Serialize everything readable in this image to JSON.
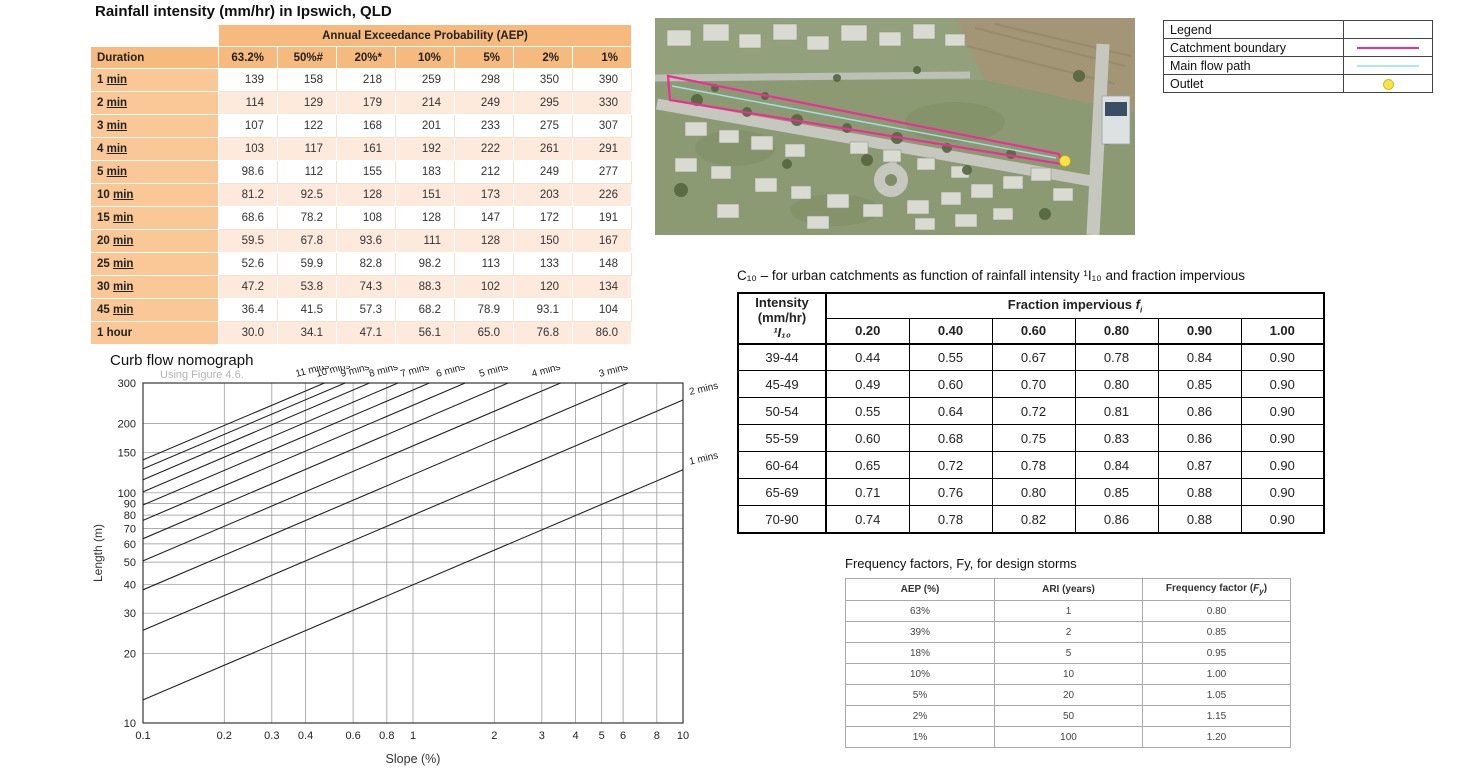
{
  "rainfall": {
    "title": "Rainfall intensity (mm/hr) in Ipswich, QLD",
    "aep_header": "Annual Exceedance Probability (AEP)",
    "columns": [
      "Duration",
      "63.2%",
      "50%#",
      "20%*",
      "10%",
      "5%",
      "2%",
      "1%"
    ],
    "rows": [
      {
        "num": "1",
        "unit": "min",
        "underline": true,
        "values": [
          "139",
          "158",
          "218",
          "259",
          "298",
          "350",
          "390"
        ]
      },
      {
        "num": "2",
        "unit": "min",
        "underline": true,
        "values": [
          "114",
          "129",
          "179",
          "214",
          "249",
          "295",
          "330"
        ]
      },
      {
        "num": "3",
        "unit": "min",
        "underline": true,
        "values": [
          "107",
          "122",
          "168",
          "201",
          "233",
          "275",
          "307"
        ]
      },
      {
        "num": "4",
        "unit": "min",
        "underline": true,
        "values": [
          "103",
          "117",
          "161",
          "192",
          "222",
          "261",
          "291"
        ]
      },
      {
        "num": "5",
        "unit": "min",
        "underline": true,
        "values": [
          "98.6",
          "112",
          "155",
          "183",
          "212",
          "249",
          "277"
        ]
      },
      {
        "num": "10",
        "unit": "min",
        "underline": true,
        "values": [
          "81.2",
          "92.5",
          "128",
          "151",
          "173",
          "203",
          "226"
        ]
      },
      {
        "num": "15",
        "unit": "min",
        "underline": true,
        "values": [
          "68.6",
          "78.2",
          "108",
          "128",
          "147",
          "172",
          "191"
        ]
      },
      {
        "num": "20",
        "unit": "min",
        "underline": true,
        "values": [
          "59.5",
          "67.8",
          "93.6",
          "111",
          "128",
          "150",
          "167"
        ]
      },
      {
        "num": "25",
        "unit": "min",
        "underline": true,
        "values": [
          "52.6",
          "59.9",
          "82.8",
          "98.2",
          "113",
          "133",
          "148"
        ]
      },
      {
        "num": "30",
        "unit": "min",
        "underline": true,
        "values": [
          "47.2",
          "53.8",
          "74.3",
          "88.3",
          "102",
          "120",
          "134"
        ]
      },
      {
        "num": "45",
        "unit": "min",
        "underline": true,
        "values": [
          "36.4",
          "41.5",
          "57.3",
          "68.2",
          "78.9",
          "93.1",
          "104"
        ]
      },
      {
        "num": "1",
        "unit": "hour",
        "underline": false,
        "values": [
          "30.0",
          "34.1",
          "47.1",
          "56.1",
          "65.0",
          "76.8",
          "86.0"
        ]
      }
    ]
  },
  "legend": {
    "title": "Legend",
    "items": [
      {
        "label": "Catchment boundary",
        "type": "line",
        "color": "#EE2E96"
      },
      {
        "label": "Main flow path",
        "type": "line",
        "color": "#A9E8EE"
      },
      {
        "label": "Outlet",
        "type": "dot",
        "color": "#F6E545"
      }
    ]
  },
  "c10": {
    "caption": "C₁₀ – for urban catchments as function of rainfall intensity ¹I₁₀ and fraction impervious",
    "row_header_lines": [
      "Intensity",
      "(mm/hr)",
      "¹I₁₀"
    ],
    "group_header": {
      "pre": "Fraction impervious ",
      "f": "f",
      "sub": "i"
    },
    "sub_headers": [
      "0.20",
      "0.40",
      "0.60",
      "0.80",
      "0.90",
      "1.00"
    ],
    "rows": [
      {
        "intensity": "39-44",
        "values": [
          "0.44",
          "0.55",
          "0.67",
          "0.78",
          "0.84",
          "0.90"
        ]
      },
      {
        "intensity": "45-49",
        "values": [
          "0.49",
          "0.60",
          "0.70",
          "0.80",
          "0.85",
          "0.90"
        ]
      },
      {
        "intensity": "50-54",
        "values": [
          "0.55",
          "0.64",
          "0.72",
          "0.81",
          "0.86",
          "0.90"
        ]
      },
      {
        "intensity": "55-59",
        "values": [
          "0.60",
          "0.68",
          "0.75",
          "0.83",
          "0.86",
          "0.90"
        ]
      },
      {
        "intensity": "60-64",
        "values": [
          "0.65",
          "0.72",
          "0.78",
          "0.84",
          "0.87",
          "0.90"
        ]
      },
      {
        "intensity": "65-69",
        "values": [
          "0.71",
          "0.76",
          "0.80",
          "0.85",
          "0.88",
          "0.90"
        ]
      },
      {
        "intensity": "70-90",
        "values": [
          "0.74",
          "0.78",
          "0.82",
          "0.86",
          "0.88",
          "0.90"
        ]
      }
    ]
  },
  "frequency": {
    "caption": "Frequency factors, Fy, for design storms",
    "columns": [
      "AEP (%)",
      "ARI (years)"
    ],
    "col3": {
      "pre": "Frequency factor (",
      "f": "F",
      "sub": "y",
      "post": ")"
    },
    "rows": [
      [
        "63%",
        "1",
        "0.80"
      ],
      [
        "39%",
        "2",
        "0.85"
      ],
      [
        "18%",
        "5",
        "0.95"
      ],
      [
        "10%",
        "10",
        "1.00"
      ],
      [
        "5%",
        "20",
        "1.05"
      ],
      [
        "2%",
        "50",
        "1.15"
      ],
      [
        "1%",
        "100",
        "1.20"
      ]
    ]
  },
  "nomograph": {
    "title": "Curb flow nomograph",
    "note": "Using Figure 4.6.",
    "xlabel": "Slope  (%)",
    "ylabel": "Length (m)"
  },
  "chart_data": {
    "type": "line",
    "title": "Curb flow nomograph",
    "xlabel": "Slope (%)",
    "ylabel": "Length (m)",
    "x_scale": "log",
    "y_scale": "log",
    "xlim": [
      0.1,
      10
    ],
    "ylim": [
      10,
      300
    ],
    "x_ticks": [
      0.1,
      0.2,
      0.3,
      0.4,
      0.6,
      0.8,
      1,
      2,
      3,
      4,
      5,
      6,
      8,
      10
    ],
    "y_ticks": [
      10,
      20,
      30,
      40,
      50,
      60,
      70,
      80,
      90,
      100,
      150,
      200,
      300
    ],
    "grid": true,
    "series": [
      {
        "name": "1 mins",
        "label_pos": "right",
        "points": [
          [
            0.1,
            12.6
          ],
          [
            10,
            126
          ]
        ]
      },
      {
        "name": "2 mins",
        "label_pos": "right",
        "points": [
          [
            0.1,
            25.3
          ],
          [
            10,
            253
          ]
        ]
      },
      {
        "name": "3 mins",
        "label_pos": "top",
        "points": [
          [
            0.1,
            37.9
          ],
          [
            6.25,
            300
          ]
        ]
      },
      {
        "name": "4 mins",
        "label_pos": "top",
        "points": [
          [
            0.1,
            50.6
          ],
          [
            3.52,
            300
          ]
        ]
      },
      {
        "name": "5 mins",
        "label_pos": "top",
        "points": [
          [
            0.1,
            63.2
          ],
          [
            2.25,
            300
          ]
        ]
      },
      {
        "name": "6 mins",
        "label_pos": "top",
        "points": [
          [
            0.1,
            75.9
          ],
          [
            1.56,
            300
          ]
        ]
      },
      {
        "name": "7 mins",
        "label_pos": "top",
        "points": [
          [
            0.1,
            88.5
          ],
          [
            1.15,
            300
          ]
        ]
      },
      {
        "name": "8 mins",
        "label_pos": "top",
        "points": [
          [
            0.1,
            101
          ],
          [
            0.88,
            300
          ]
        ]
      },
      {
        "name": "9 mins",
        "label_pos": "top",
        "points": [
          [
            0.1,
            114
          ],
          [
            0.69,
            300
          ]
        ]
      },
      {
        "name": "10 mins",
        "label_pos": "top",
        "points": [
          [
            0.1,
            127
          ],
          [
            0.56,
            300
          ]
        ]
      },
      {
        "name": "11 mins",
        "label_pos": "top",
        "points": [
          [
            0.1,
            139
          ],
          [
            0.47,
            300
          ]
        ]
      }
    ]
  }
}
